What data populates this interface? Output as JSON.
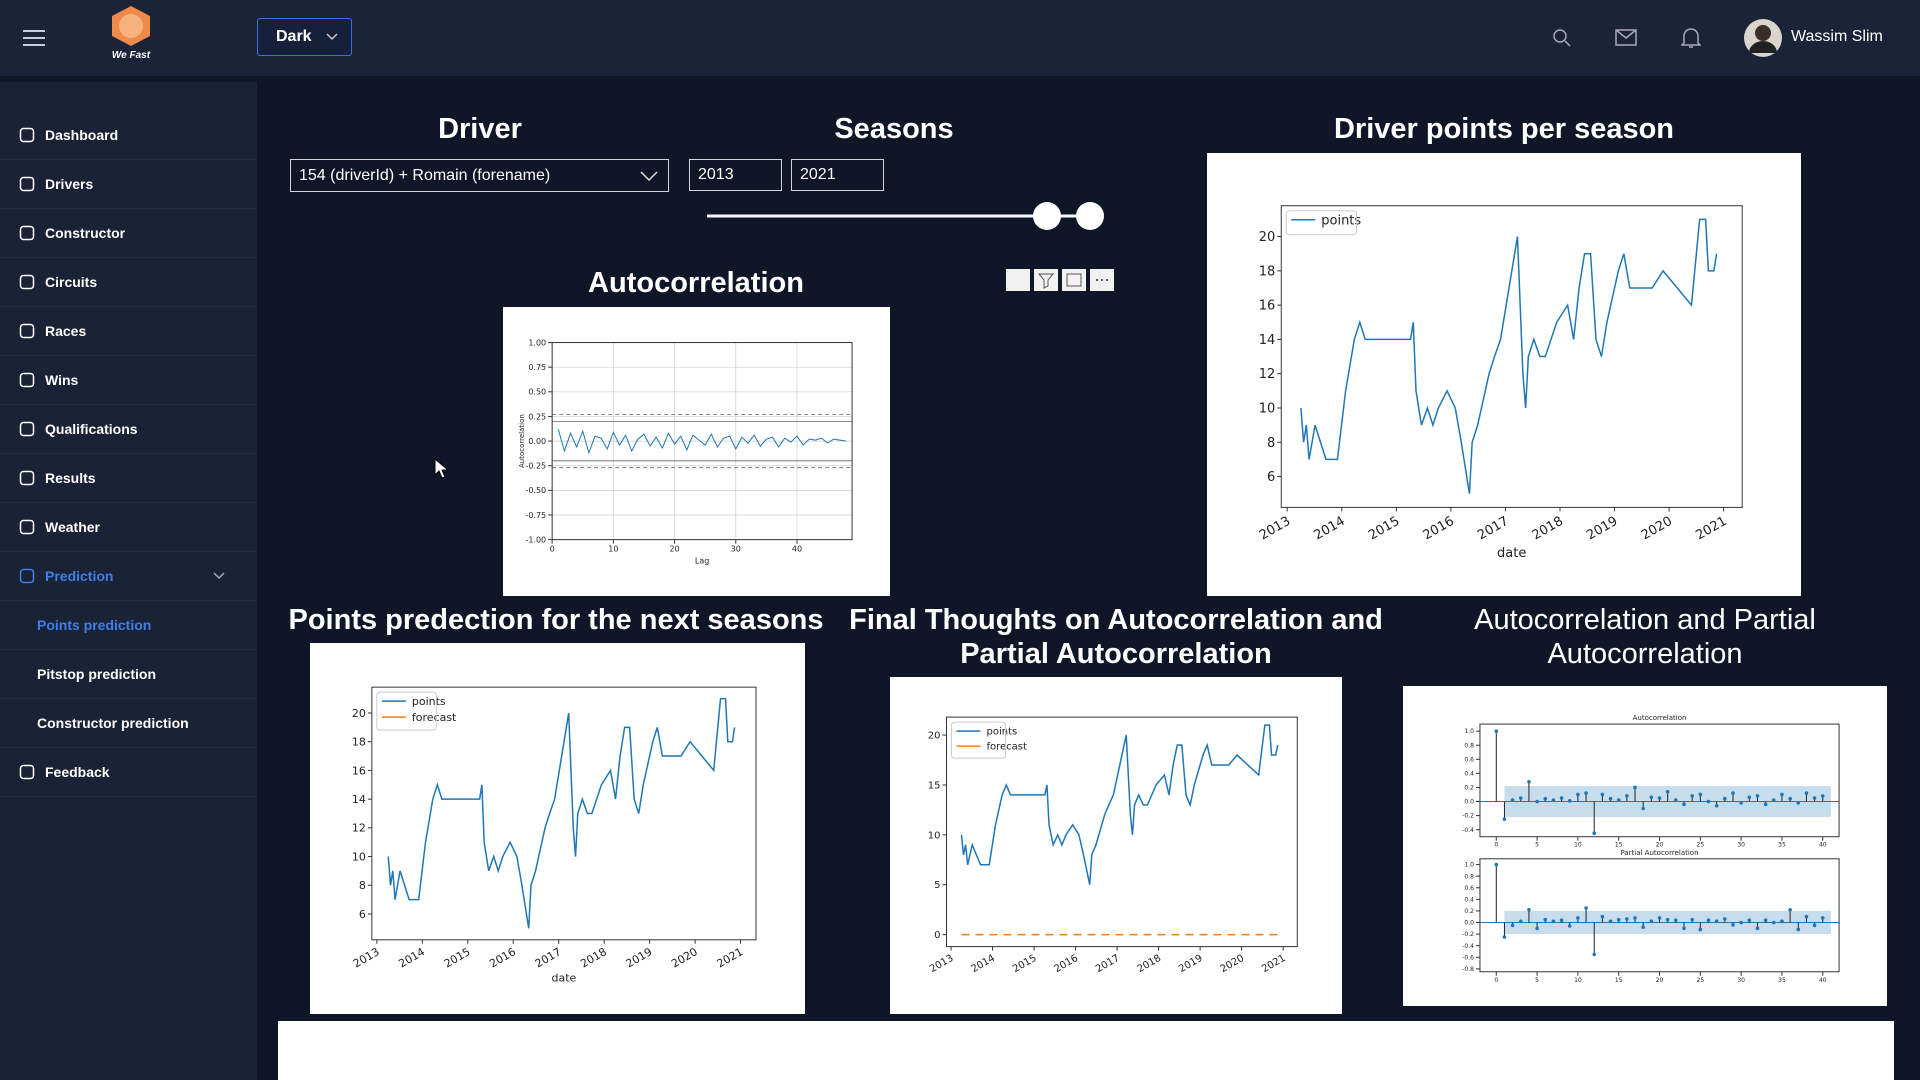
{
  "header": {
    "theme": "Dark",
    "logo": "We Fast",
    "user": "Wassim Slim"
  },
  "sidebar": {
    "items": [
      "Dashboard",
      "Drivers",
      "Constructor",
      "Circuits",
      "Races",
      "Wins",
      "Qualifications",
      "Results",
      "Weather",
      "Prediction"
    ],
    "prediction_items": [
      "Points prediction",
      "Pitstop prediction",
      "Constructor prediction"
    ],
    "footer_item": "Feedback"
  },
  "filters": {
    "driver_title": "Driver",
    "driver": "154 (driverId) + Romain (forename)",
    "seasons_title": "Seasons",
    "season_start": "2013",
    "season_end": "2021"
  },
  "charts": [
    {
      "type": "line",
      "title": "Driver points per season",
      "xlabel": "date",
      "xlim": [
        2012.89,
        2021.34
      ],
      "ylim": [
        4.2,
        21.8
      ],
      "xticks": [
        2013,
        2014,
        2015,
        2016,
        2017,
        2018,
        2019,
        2020,
        2021
      ],
      "yticks": [
        6,
        8,
        10,
        12,
        14,
        16,
        18,
        20
      ],
      "legend": "upper left",
      "series": [
        {
          "name": "points",
          "color": "#1f77b4",
          "x": [
            2013.25,
            2013.3,
            2013.35,
            2013.4,
            2013.51,
            2013.61,
            2013.71,
            2013.92,
            2014.07,
            2014.23,
            2014.33,
            2014.43,
            2014.64,
            2014.95,
            2015.26,
            2015.31,
            2015.36,
            2015.46,
            2015.57,
            2015.67,
            2015.77,
            2015.93,
            2016.08,
            2016.19,
            2016.29,
            2016.34,
            2016.39,
            2016.49,
            2016.7,
            2016.8,
            2016.91,
            2017.22,
            2017.32,
            2017.37,
            2017.42,
            2017.52,
            2017.63,
            2017.73,
            2017.94,
            2018.14,
            2018.25,
            2018.35,
            2018.45,
            2018.56,
            2018.66,
            2018.76,
            2018.86,
            2019.07,
            2019.17,
            2019.28,
            2019.69,
            2019.89,
            2020.41,
            2020.56,
            2020.67,
            2020.72,
            2020.82,
            2020.87
          ],
          "values": [
            10,
            8,
            9,
            7,
            9,
            8,
            7,
            7,
            11,
            14,
            15,
            14,
            14,
            14,
            14,
            15,
            11,
            9,
            10,
            9,
            10,
            11,
            10,
            8,
            6,
            5,
            8,
            9,
            12,
            13,
            14,
            20,
            12,
            10,
            13,
            14,
            13,
            13,
            15,
            16,
            14,
            17,
            19,
            19,
            14,
            13,
            15,
            18,
            19,
            17,
            17,
            18,
            16,
            21,
            21,
            18,
            18,
            19
          ]
        }
      ]
    },
    {
      "type": "line",
      "title": "Points predection for the next seasons",
      "xlabel": "date",
      "xlim": [
        2012.89,
        2021.34
      ],
      "ylim": [
        4.2,
        21.8
      ],
      "xticks": [
        2013,
        2014,
        2015,
        2016,
        2017,
        2018,
        2019,
        2020,
        2021
      ],
      "yticks": [
        6,
        8,
        10,
        12,
        14,
        16,
        18,
        20
      ],
      "legend": "upper left",
      "series": [
        {
          "name": "points",
          "color": "#1f77b4",
          "x": [
            2013.25,
            2013.3,
            2013.35,
            2013.4,
            2013.51,
            2013.61,
            2013.71,
            2013.92,
            2014.07,
            2014.23,
            2014.33,
            2014.43,
            2014.64,
            2014.95,
            2015.26,
            2015.31,
            2015.36,
            2015.46,
            2015.57,
            2015.67,
            2015.77,
            2015.93,
            2016.08,
            2016.19,
            2016.29,
            2016.34,
            2016.39,
            2016.49,
            2016.7,
            2016.8,
            2016.91,
            2017.22,
            2017.32,
            2017.37,
            2017.42,
            2017.52,
            2017.63,
            2017.73,
            2017.94,
            2018.14,
            2018.25,
            2018.35,
            2018.45,
            2018.56,
            2018.66,
            2018.76,
            2018.86,
            2019.07,
            2019.17,
            2019.28,
            2019.69,
            2019.89,
            2020.41,
            2020.56,
            2020.67,
            2020.72,
            2020.82,
            2020.87
          ],
          "values": [
            10,
            8,
            9,
            7,
            9,
            8,
            7,
            7,
            11,
            14,
            15,
            14,
            14,
            14,
            14,
            15,
            11,
            9,
            10,
            9,
            10,
            11,
            10,
            8,
            6,
            5,
            8,
            9,
            12,
            13,
            14,
            20,
            12,
            10,
            13,
            14,
            13,
            13,
            15,
            16,
            14,
            17,
            19,
            19,
            14,
            13,
            15,
            18,
            19,
            17,
            17,
            18,
            16,
            21,
            21,
            18,
            18,
            19
          ]
        },
        {
          "name": "forecast",
          "color": "#ff7f0e"
        }
      ]
    },
    {
      "type": "line",
      "title": "Final Thoughts on Autocorrelation and Partial Autocorrelation",
      "xlim": [
        2012.89,
        2021.34
      ],
      "ylim": [
        -1.2,
        21.8
      ],
      "xticks": [
        2013,
        2014,
        2015,
        2016,
        2017,
        2018,
        2019,
        2020,
        2021
      ],
      "yticks": [
        0,
        5,
        10,
        15,
        20
      ],
      "legend": "upper left",
      "series": [
        {
          "name": "points",
          "color": "#1f77b4",
          "x": [
            2013.25,
            2013.3,
            2013.35,
            2013.4,
            2013.51,
            2013.61,
            2013.71,
            2013.92,
            2014.07,
            2014.23,
            2014.33,
            2014.43,
            2014.64,
            2014.95,
            2015.26,
            2015.31,
            2015.36,
            2015.46,
            2015.57,
            2015.67,
            2015.77,
            2015.93,
            2016.08,
            2016.19,
            2016.29,
            2016.34,
            2016.39,
            2016.49,
            2016.7,
            2016.8,
            2016.91,
            2017.22,
            2017.32,
            2017.37,
            2017.42,
            2017.52,
            2017.63,
            2017.73,
            2017.94,
            2018.14,
            2018.25,
            2018.35,
            2018.45,
            2018.56,
            2018.66,
            2018.76,
            2018.86,
            2019.07,
            2019.17,
            2019.28,
            2019.69,
            2019.89,
            2020.41,
            2020.56,
            2020.67,
            2020.72,
            2020.82,
            2020.87
          ],
          "values": [
            10,
            8,
            9,
            7,
            9,
            8,
            7,
            7,
            11,
            14,
            15,
            14,
            14,
            14,
            14,
            15,
            11,
            9,
            10,
            9,
            10,
            11,
            10,
            8,
            6,
            5,
            8,
            9,
            12,
            13,
            14,
            20,
            12,
            10,
            13,
            14,
            13,
            13,
            15,
            16,
            14,
            17,
            19,
            19,
            14,
            13,
            15,
            18,
            19,
            17,
            17,
            18,
            16,
            21,
            21,
            18,
            18,
            19
          ]
        },
        {
          "name": "forecast",
          "color": "#ff7f0e",
          "dashed": true,
          "x": [
            2013.25,
            2020.87
          ],
          "values": [
            0,
            0
          ]
        }
      ]
    },
    {
      "type": "acf",
      "title": "Autocorrelation and Partial Autocorrelation",
      "panels": [
        {
          "title": "Autocorrelation",
          "color": "#1f77b4",
          "confidence": 0.22,
          "xlim": [
            -2,
            42
          ],
          "ylim": [
            -0.5,
            1.1
          ],
          "xticks": [
            0,
            5,
            10,
            15,
            20,
            25,
            30,
            35,
            40
          ],
          "yticks": [
            -0.4,
            -0.2,
            {
              "value": 0,
              "label": "0.0"
            },
            0.2,
            0.4,
            0.6,
            0.8,
            {
              "value": 1,
              "label": "1.0"
            }
          ],
          "x": [
            0,
            1,
            2,
            3,
            4,
            5,
            6,
            7,
            8,
            9,
            10,
            11,
            12,
            13,
            14,
            15,
            16,
            17,
            18,
            19,
            20,
            21,
            22,
            23,
            24,
            25,
            26,
            27,
            28,
            29,
            30,
            31,
            32,
            33,
            34,
            35,
            36,
            37,
            38,
            39,
            40
          ],
          "values": [
            1,
            -0.25,
            0.02,
            0.05,
            0.28,
            0.0,
            0.04,
            0.02,
            0.05,
            0.01,
            0.1,
            0.12,
            -0.45,
            0.1,
            0.04,
            0.02,
            0.08,
            0.2,
            -0.1,
            0.06,
            0.05,
            0.14,
            0.02,
            -0.04,
            0.08,
            0.1,
            0.0,
            -0.06,
            0.04,
            0.12,
            -0.02,
            0.06,
            0.08,
            -0.04,
            0.02,
            0.1,
            0.04,
            -0.02,
            0.12,
            0.05,
            0.08
          ]
        },
        {
          "title": "Partial Autocorrelation",
          "color": "#1f77b4",
          "confidence": 0.2,
          "xlim": [
            -2,
            42
          ],
          "ylim": [
            -0.85,
            1.1
          ],
          "xticks": [
            0,
            5,
            10,
            15,
            20,
            25,
            30,
            35,
            40
          ],
          "yticks": [
            -0.8,
            -0.6,
            -0.4,
            -0.2,
            {
              "value": 0,
              "label": "0.0"
            },
            0.2,
            0.4,
            0.6,
            0.8,
            {
              "value": 1,
              "label": "1.0"
            }
          ],
          "x": [
            0,
            1,
            2,
            3,
            4,
            5,
            6,
            7,
            8,
            9,
            10,
            11,
            12,
            13,
            14,
            15,
            16,
            17,
            18,
            19,
            20,
            21,
            22,
            23,
            24,
            25,
            26,
            27,
            28,
            29,
            30,
            31,
            32,
            33,
            34,
            35,
            36,
            37,
            38,
            39,
            40
          ],
          "values": [
            1,
            -0.25,
            -0.05,
            0.02,
            0.22,
            -0.1,
            0.05,
            0.02,
            0.04,
            -0.06,
            0.08,
            0.25,
            -0.55,
            0.1,
            0.02,
            0.05,
            0.06,
            0.08,
            -0.08,
            0.02,
            0.08,
            0.05,
            0.04,
            -0.1,
            0.05,
            -0.12,
            0.04,
            0.02,
            0.06,
            -0.04,
            0.0,
            0.04,
            -0.1,
            0.04,
            0.0,
            0.02,
            0.22,
            -0.12,
            0.1,
            -0.05,
            0.08
          ]
        }
      ]
    },
    {
      "type": "autocorr",
      "title": "Autocorrelation",
      "xlabel": "Lag",
      "ylabel": "Autocorrelation",
      "grid": true,
      "color": "#1f77b4",
      "xlim": [
        0,
        49
      ],
      "ylim": [
        -1,
        1
      ],
      "xticks": [
        0,
        10,
        20,
        30,
        40
      ],
      "yticks": [
        {
          "value": -1,
          "label": "-1.00"
        },
        -0.75,
        {
          "value": -0.5,
          "label": "-0.50"
        },
        -0.25,
        {
          "value": 0,
          "label": "0.00"
        },
        0.25,
        {
          "value": 0.5,
          "label": "0.50"
        },
        0.75,
        {
          "value": 1,
          "label": "1.00"
        }
      ],
      "conf_lines": [
        0.2,
        0.27,
        -0.2,
        -0.27
      ],
      "x": [
        1,
        2,
        3,
        4,
        5,
        6,
        7,
        8,
        9,
        10,
        11,
        12,
        13,
        14,
        15,
        16,
        17,
        18,
        19,
        20,
        21,
        22,
        23,
        24,
        25,
        26,
        27,
        28,
        29,
        30,
        31,
        32,
        33,
        34,
        35,
        36,
        37,
        38,
        39,
        40,
        41,
        42,
        43,
        44,
        45,
        46,
        47,
        48
      ],
      "values": [
        0.12,
        -0.1,
        0.08,
        -0.06,
        0.1,
        -0.12,
        0.05,
        0.03,
        -0.08,
        0.09,
        -0.04,
        0.06,
        -0.1,
        0.02,
        0.07,
        -0.05,
        0.04,
        -0.07,
        0.08,
        -0.03,
        0.05,
        -0.09,
        0.06,
        0.01,
        -0.04,
        0.07,
        -0.06,
        0.03,
        0.05,
        -0.08,
        0.04,
        -0.02,
        0.06,
        -0.05,
        0.02,
        0.04,
        -0.06,
        0.03,
        -0.01,
        0.05,
        -0.04,
        0.02,
        0.01,
        0.03,
        -0.02,
        0.02,
        0.01,
        0.0
      ]
    }
  ]
}
